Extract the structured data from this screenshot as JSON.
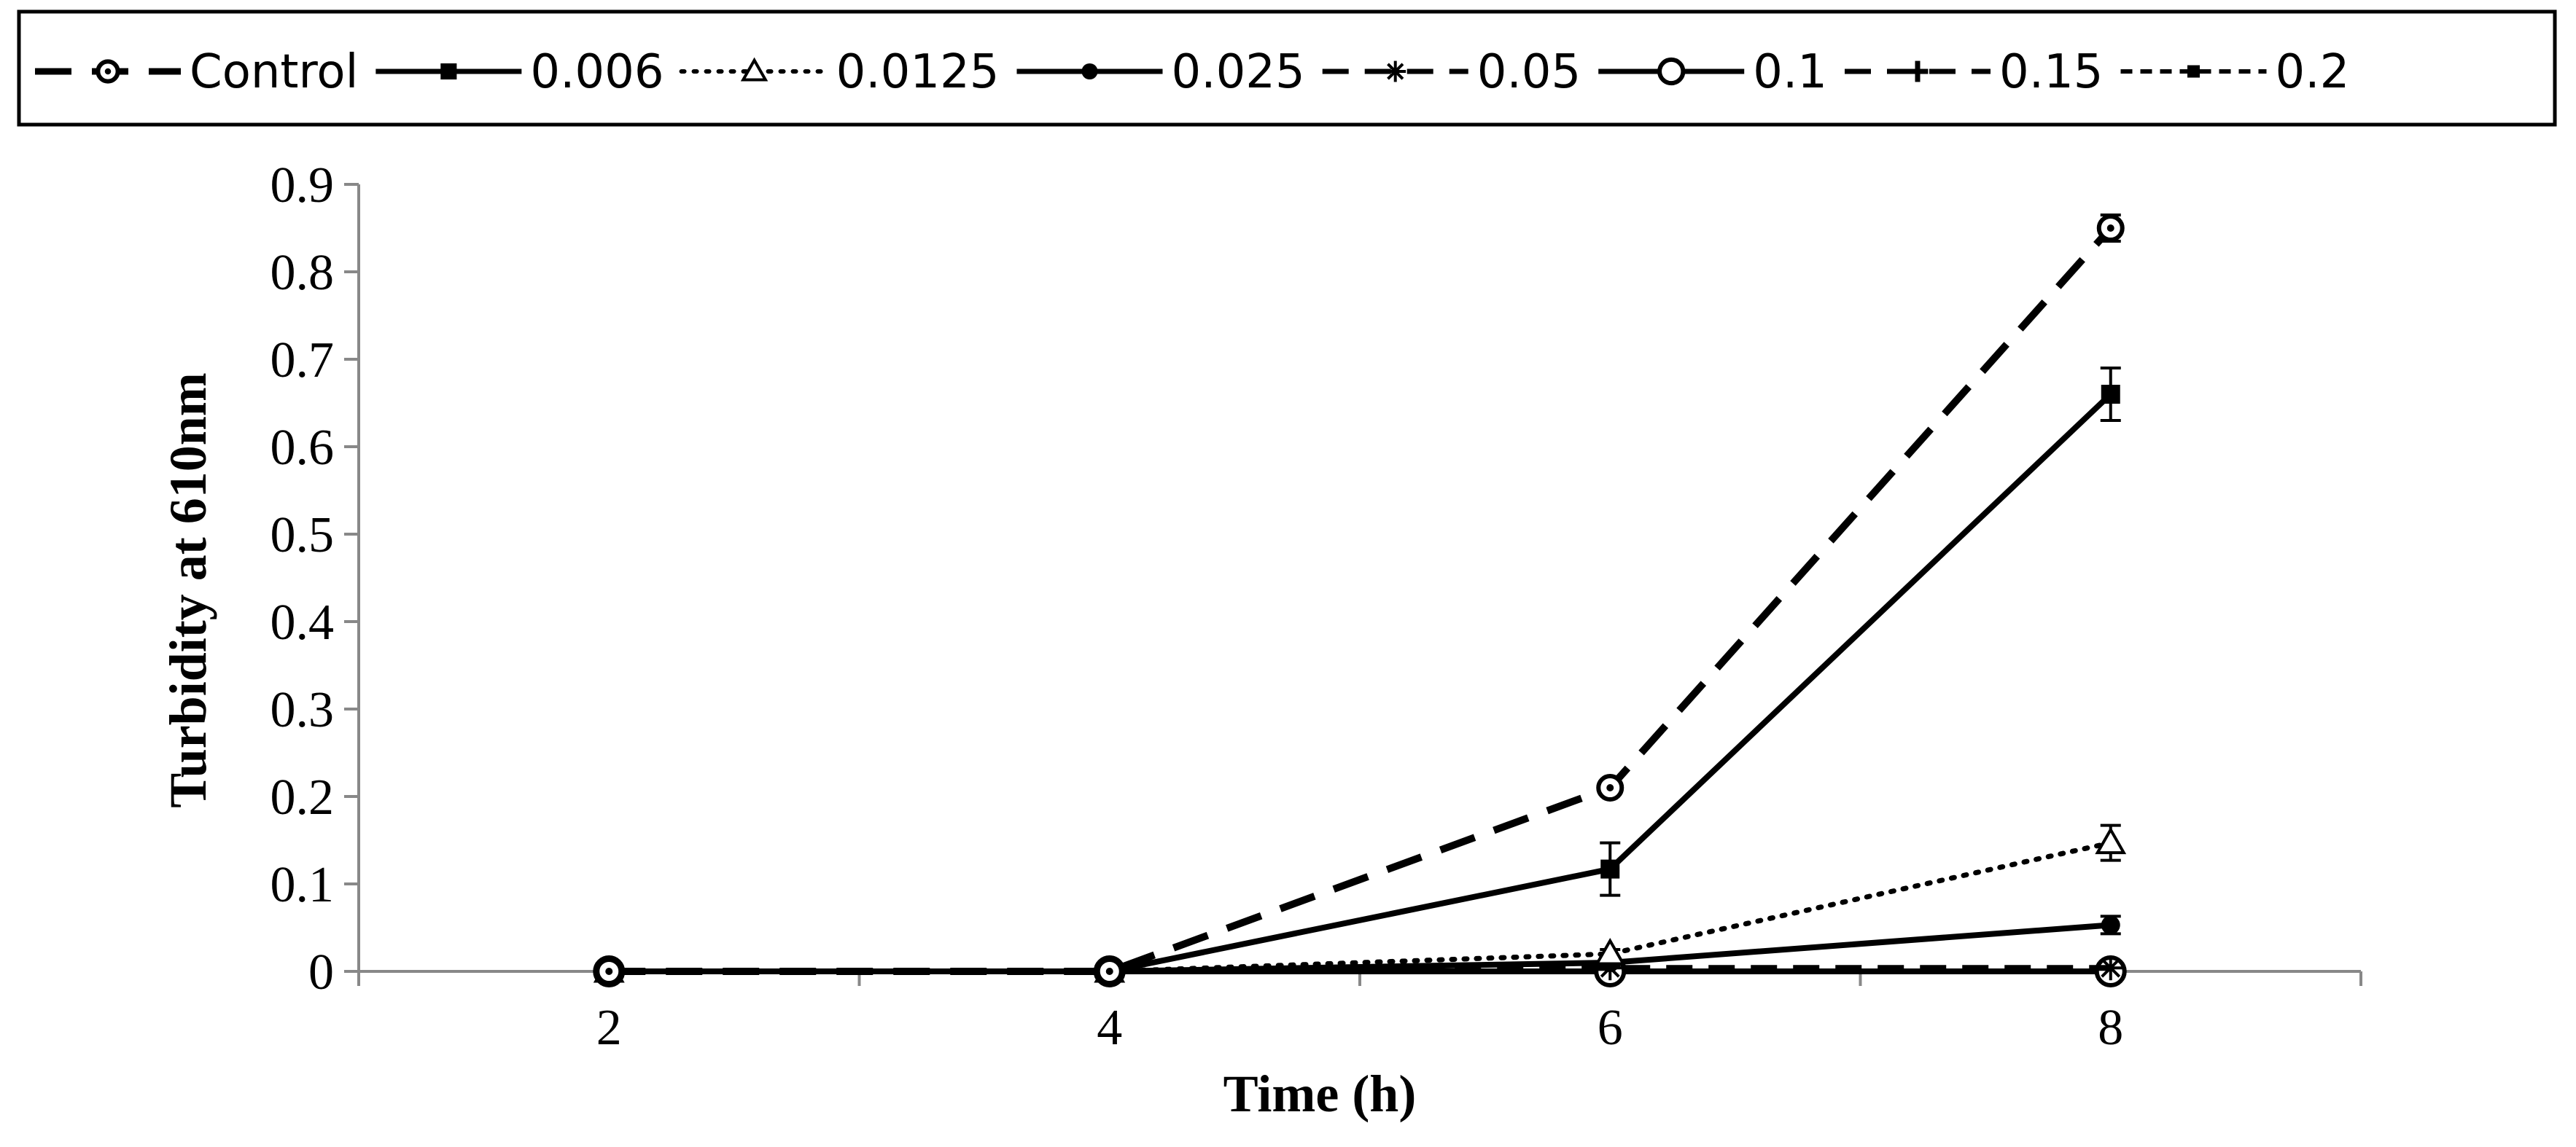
{
  "chart_data": {
    "type": "line",
    "title": "",
    "xlabel": "Time (h)",
    "ylabel": "Turbidity at 610nm",
    "x": [
      2,
      4,
      6,
      8
    ],
    "xlim": [
      1,
      9
    ],
    "ylim": [
      0,
      0.9
    ],
    "x_ticks": [
      "2",
      "4",
      "6",
      "8"
    ],
    "y_ticks": [
      "0",
      "0.1",
      "0.2",
      "0.3",
      "0.4",
      "0.5",
      "0.6",
      "0.7",
      "0.8",
      "0.9"
    ],
    "grid": false,
    "legend_position": "top",
    "series": [
      {
        "name": "Control",
        "values": [
          0,
          0,
          0.21,
          0.85
        ],
        "errors": [
          0,
          0,
          0.008,
          0.015
        ],
        "line": "dashed-long",
        "marker": "circle-dot"
      },
      {
        "name": "0.006",
        "values": [
          0,
          0,
          0.117,
          0.66
        ],
        "errors": [
          0,
          0,
          0.03,
          0.03
        ],
        "line": "solid",
        "marker": "square"
      },
      {
        "name": "0.0125",
        "values": [
          0,
          0,
          0.02,
          0.147
        ],
        "errors": [
          0,
          0,
          0.005,
          0.02
        ],
        "line": "dotted",
        "marker": "triangle-open"
      },
      {
        "name": "0.025",
        "values": [
          0,
          0,
          0.01,
          0.053
        ],
        "errors": [
          0,
          0,
          0.004,
          0.01
        ],
        "line": "solid",
        "marker": "circle-filled"
      },
      {
        "name": "0.05",
        "values": [
          0,
          0,
          0.004,
          0.004
        ],
        "errors": [
          0,
          0,
          0,
          0
        ],
        "line": "dashed",
        "marker": "asterisk"
      },
      {
        "name": "0.1",
        "values": [
          0,
          0,
          0,
          0
        ],
        "errors": [
          0,
          0,
          0,
          0
        ],
        "line": "solid",
        "marker": "circle-open"
      },
      {
        "name": "0.15",
        "values": [
          0,
          0,
          0,
          0
        ],
        "errors": [
          0,
          0,
          0,
          0
        ],
        "line": "dashed",
        "marker": "plus"
      },
      {
        "name": "0.2",
        "values": [
          0,
          0,
          0,
          0
        ],
        "errors": [
          0,
          0,
          0,
          0
        ],
        "line": "short-dashed",
        "marker": "square-small"
      }
    ]
  }
}
